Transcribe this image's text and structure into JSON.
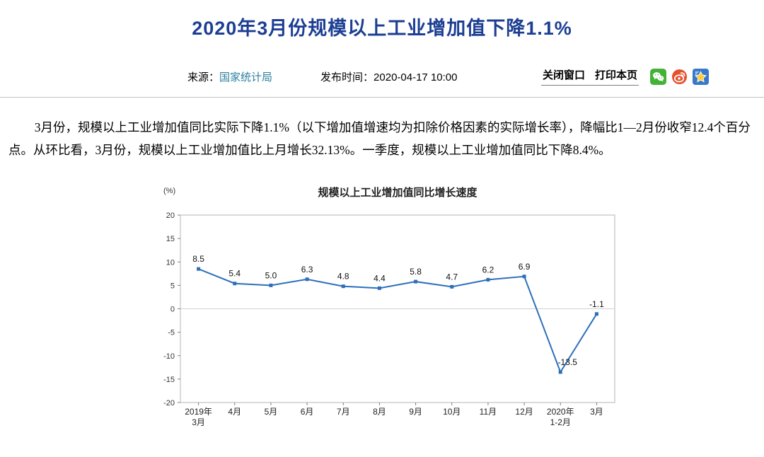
{
  "header": {
    "title": "2020年3月份规模以上工业增加值下降1.1%",
    "source_label": "来源：",
    "source_link": "国家统计局",
    "publish_label": "发布时间：",
    "publish_time": "2020-04-17 10:00",
    "close_window_label": "关闭窗口",
    "print_page_label": "打印本页",
    "share_icons": [
      "wechat-icon",
      "weibo-icon",
      "favorite-star-icon"
    ]
  },
  "article": {
    "paragraph": "3月份，规模以上工业增加值同比实际下降1.1%（以下增加值增速均为扣除价格因素的实际增长率），降幅比1—2月份收窄12.4个百分点。从环比看，3月份，规模以上工业增加值比上月增长32.13%。一季度，规模以上工业增加值同比下降8.4%。"
  },
  "chart_data": {
    "type": "line",
    "title": "规模以上工业增加值同比增长速度",
    "unit_label": "(%)",
    "categories": [
      [
        "2019年",
        "3月"
      ],
      [
        "4月"
      ],
      [
        "5月"
      ],
      [
        "6月"
      ],
      [
        "7月"
      ],
      [
        "8月"
      ],
      [
        "9月"
      ],
      [
        "10月"
      ],
      [
        "11月"
      ],
      [
        "12月"
      ],
      [
        "2020年",
        "1-2月"
      ],
      [
        "3月"
      ]
    ],
    "values": [
      8.5,
      5.4,
      5.0,
      6.3,
      4.8,
      4.4,
      5.8,
      4.7,
      6.2,
      6.9,
      -13.5,
      -1.1
    ],
    "ylim": [
      -20,
      20
    ],
    "ytick_step": 5,
    "grid": false,
    "legend": "none",
    "line_color": "#2e6fba",
    "label_color": "#111111"
  }
}
